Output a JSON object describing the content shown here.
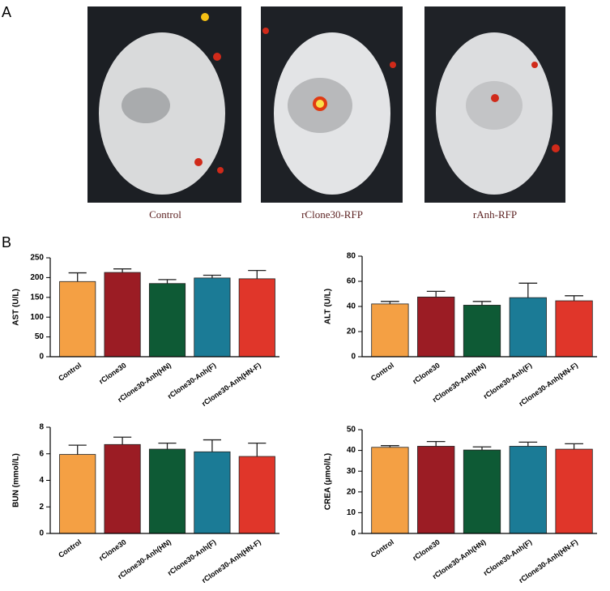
{
  "panels": {
    "a": {
      "label": "A",
      "images": [
        {
          "caption": "Control"
        },
        {
          "caption": "rClone30-RFP"
        },
        {
          "caption": "rAnh-RFP"
        }
      ]
    },
    "b": {
      "label": "B"
    }
  },
  "chart_data": [
    {
      "type": "bar",
      "y_label": "AST (U/L)",
      "categories": [
        "Control",
        "rClone30",
        "rClone30-Anh(HN)",
        "rClone30-Anh(F)",
        "rClone30-Anh(HN-F)"
      ],
      "values": [
        190,
        213,
        185,
        199,
        197
      ],
      "errors": [
        22,
        9,
        10,
        7,
        21
      ],
      "colors": [
        "#f4a044",
        "#9b1c24",
        "#0e5a35",
        "#1b7b96",
        "#e0362a"
      ],
      "ylim": [
        0,
        250
      ],
      "yticks": [
        0,
        50,
        100,
        150,
        200,
        250
      ]
    },
    {
      "type": "bar",
      "y_label": "ALT (U/L)",
      "categories": [
        "Control",
        "rClone30",
        "rClone30-Anh(HN)",
        "rClone30-Anh(F)",
        "rClone30-Anh(HN-F)"
      ],
      "values": [
        42,
        47.5,
        41,
        47,
        44.5
      ],
      "errors": [
        2,
        4.5,
        3,
        11.5,
        4
      ],
      "colors": [
        "#f4a044",
        "#9b1c24",
        "#0e5a35",
        "#1b7b96",
        "#e0362a"
      ],
      "ylim": [
        0,
        80
      ],
      "yticks": [
        0,
        20,
        40,
        60,
        80
      ]
    },
    {
      "type": "bar",
      "y_label": "BUN (mmol/L)",
      "categories": [
        "Control",
        "rClone30",
        "rClone30-Anh(HN)",
        "rClone30-Anh(F)",
        "rClone30-Anh(HN-F)"
      ],
      "values": [
        5.95,
        6.7,
        6.35,
        6.15,
        5.8
      ],
      "errors": [
        0.7,
        0.55,
        0.45,
        0.9,
        1.0
      ],
      "colors": [
        "#f4a044",
        "#9b1c24",
        "#0e5a35",
        "#1b7b96",
        "#e0362a"
      ],
      "ylim": [
        0,
        8
      ],
      "yticks": [
        0,
        2,
        4,
        6,
        8
      ]
    },
    {
      "type": "bar",
      "y_label": "CREA (μmol/L)",
      "categories": [
        "Control",
        "rClone30",
        "rClone30-Anh(HN)",
        "rClone30-Anh(F)",
        "rClone30-Anh(HN-F)"
      ],
      "values": [
        41.5,
        42,
        40.2,
        42,
        40.6
      ],
      "errors": [
        0.8,
        2.3,
        1.5,
        2,
        2.6
      ],
      "colors": [
        "#f4a044",
        "#9b1c24",
        "#0e5a35",
        "#1b7b96",
        "#e0362a"
      ],
      "ylim": [
        0,
        50
      ],
      "yticks": [
        0,
        10,
        20,
        30,
        40,
        50
      ]
    }
  ]
}
